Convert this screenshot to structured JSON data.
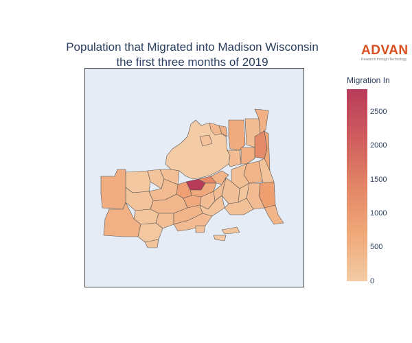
{
  "title_line1": "Population that Migrated into Madison Wisconsin",
  "title_line2": "the first three months of 2019",
  "brand": {
    "name": "ADVAN",
    "tagline": "Research through Technology",
    "color": "#d94e1f"
  },
  "legend": {
    "title": "Migration In",
    "ticks": [
      "2500",
      "2000",
      "1500",
      "1000",
      "500",
      "0"
    ],
    "min": 0,
    "max": 2800,
    "colors": [
      "#f3cba5",
      "#f0a878",
      "#e28466",
      "#cf5c5e",
      "#b83c5a"
    ]
  },
  "map": {
    "background": "#e5ecf6",
    "border_color": "#444444",
    "outline_color": "#555555"
  }
}
